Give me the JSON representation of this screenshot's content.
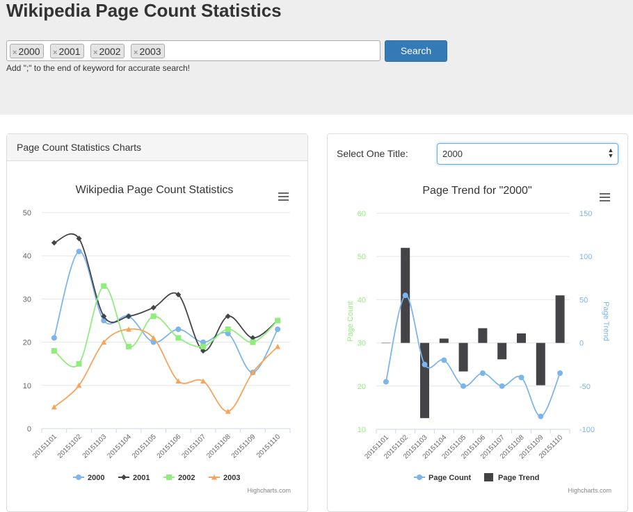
{
  "header": {
    "title": "Wikipedia Page Count Statistics",
    "hint": "Add \";\" to the end of keyword for accurate search!"
  },
  "search": {
    "tags": [
      "2000",
      "2001",
      "2002",
      "2003"
    ],
    "remove_glyph": "×",
    "button_label": "Search"
  },
  "left_panel": {
    "heading": "Page Count Statistics Charts"
  },
  "right_panel": {
    "select_label": "Select One Title:",
    "selected_title": "2000",
    "select_arrow": "▲▼"
  },
  "credits": "Highcharts.com",
  "colors": {
    "s2000": "#7cb5ec",
    "s2001": "#434348",
    "s2002": "#90ed7d",
    "s2003": "#f7a35c",
    "accent": "#337ab7"
  },
  "chart_data": [
    {
      "type": "line",
      "title": "Wikipedia Page Count Statistics",
      "x": [
        "20151101",
        "20151102",
        "20151103",
        "20151104",
        "20151105",
        "20151106",
        "20151107",
        "20151108",
        "20151109",
        "20151110"
      ],
      "ylim": [
        0,
        50
      ],
      "yticks": [
        0,
        10,
        20,
        30,
        40,
        50
      ],
      "legend": "bottom",
      "series": [
        {
          "name": "2000",
          "marker": "circle",
          "values": [
            21,
            41,
            25,
            26,
            20,
            23,
            20,
            22,
            13,
            23
          ]
        },
        {
          "name": "2001",
          "marker": "diamond",
          "values": [
            43,
            44,
            26,
            26,
            28,
            31,
            18,
            26,
            21,
            25
          ]
        },
        {
          "name": "2002",
          "marker": "square",
          "values": [
            18,
            15,
            33,
            19,
            26,
            21,
            19,
            23,
            20,
            25
          ]
        },
        {
          "name": "2003",
          "marker": "triangle",
          "values": [
            5,
            10,
            20,
            23,
            21,
            11,
            11,
            4,
            13,
            19
          ]
        }
      ]
    },
    {
      "type": "bar",
      "title": "Page Trend for \"2000\"",
      "x": [
        "20151101",
        "20151102",
        "20151103",
        "20151104",
        "20151105",
        "20151106",
        "20151107",
        "20151108",
        "20151109",
        "20151110"
      ],
      "ylabel_left": "Page Count",
      "ylabel_right": "Page Trend",
      "ylim_left": [
        10,
        60
      ],
      "ylim_right": [
        -100,
        150
      ],
      "yticks_left": [
        10,
        20,
        30,
        40,
        50,
        60
      ],
      "yticks_right": [
        -100,
        -50,
        0,
        50,
        100,
        150
      ],
      "legend": "bottom",
      "series": [
        {
          "name": "Page Count",
          "type": "line",
          "axis": "left",
          "values": [
            21,
            41,
            25,
            26,
            20,
            23,
            20,
            22,
            13,
            23
          ]
        },
        {
          "name": "Page Trend",
          "type": "column",
          "axis": "right",
          "values": [
            0,
            110,
            -87,
            5,
            -33,
            17,
            -19,
            11,
            -49,
            55
          ]
        }
      ]
    }
  ]
}
